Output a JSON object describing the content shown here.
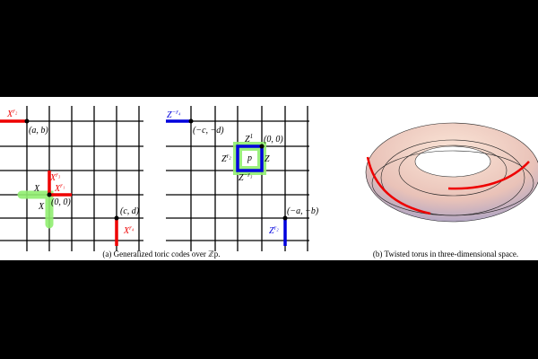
{
  "figure": {
    "panel_a": {
      "caption": "(a) Generalized toric codes over ℤp.",
      "left_labels": [
        {
          "base": "X",
          "sup": "r₂"
        },
        {
          "base": "(a, b)"
        },
        {
          "base": "X",
          "sup": "r₃"
        },
        {
          "base": "X"
        },
        {
          "base": "X",
          "sup": "r₁"
        },
        {
          "base": "X"
        },
        {
          "base": "(0, 0)"
        },
        {
          "base": "(c, d)"
        },
        {
          "base": "X",
          "sup": "r₄"
        }
      ],
      "right_labels": [
        {
          "base": "Z",
          "sup": "−r₄"
        },
        {
          "base": "(−c, −d)"
        },
        {
          "base": "Z",
          "sup": "1"
        },
        {
          "base": "(0, 0)"
        },
        {
          "base": "Z",
          "sup": "r₂"
        },
        {
          "base": "p"
        },
        {
          "base": "Z"
        },
        {
          "base": "Z",
          "sup": "−r₃"
        },
        {
          "base": "(−a, −b)"
        },
        {
          "base": "Z",
          "sup": "r₂"
        }
      ]
    },
    "panel_b": {
      "caption": "(b) Twisted torus in three-dimensional space."
    }
  }
}
